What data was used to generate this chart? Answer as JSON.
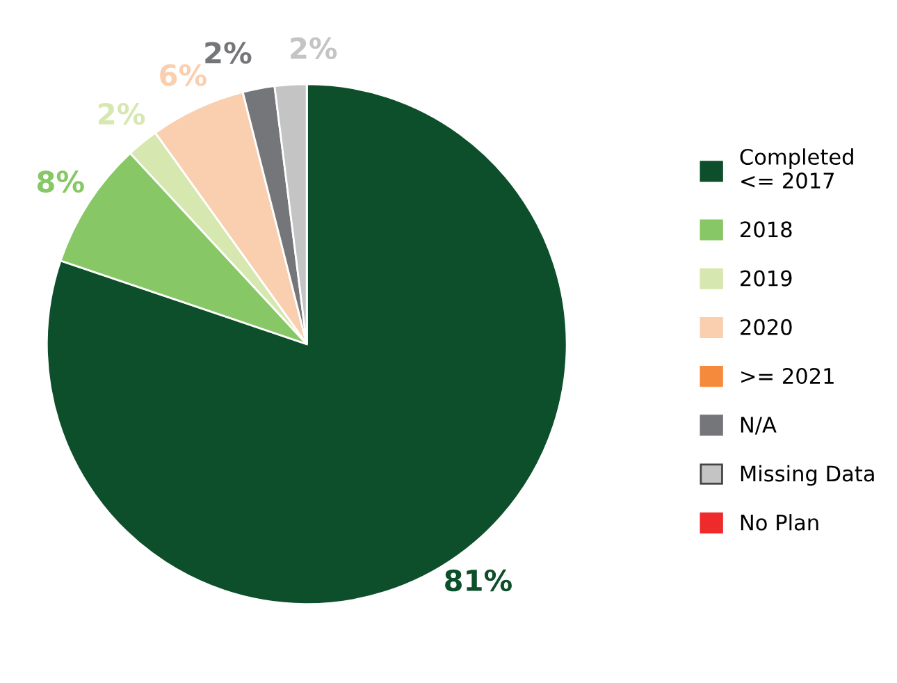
{
  "chart_data": {
    "type": "pie",
    "categories": [
      "Completed\n<= 2017",
      "2018",
      "2019",
      "2020",
      ">= 2021",
      "N/A",
      "Missing Data",
      "No Plan"
    ],
    "values": [
      81,
      8,
      2,
      6,
      0,
      2,
      2,
      0
    ],
    "colors": [
      "#0d4f2a",
      "#88c765",
      "#d6e8b0",
      "#f9cfb0",
      "#f58a3c",
      "#757679",
      "#c4c4c4",
      "#ee2a2a"
    ],
    "value_labels": [
      "81%",
      "8%",
      "2%",
      "6%",
      null,
      "2%",
      "2%",
      null
    ],
    "legend": "right"
  }
}
